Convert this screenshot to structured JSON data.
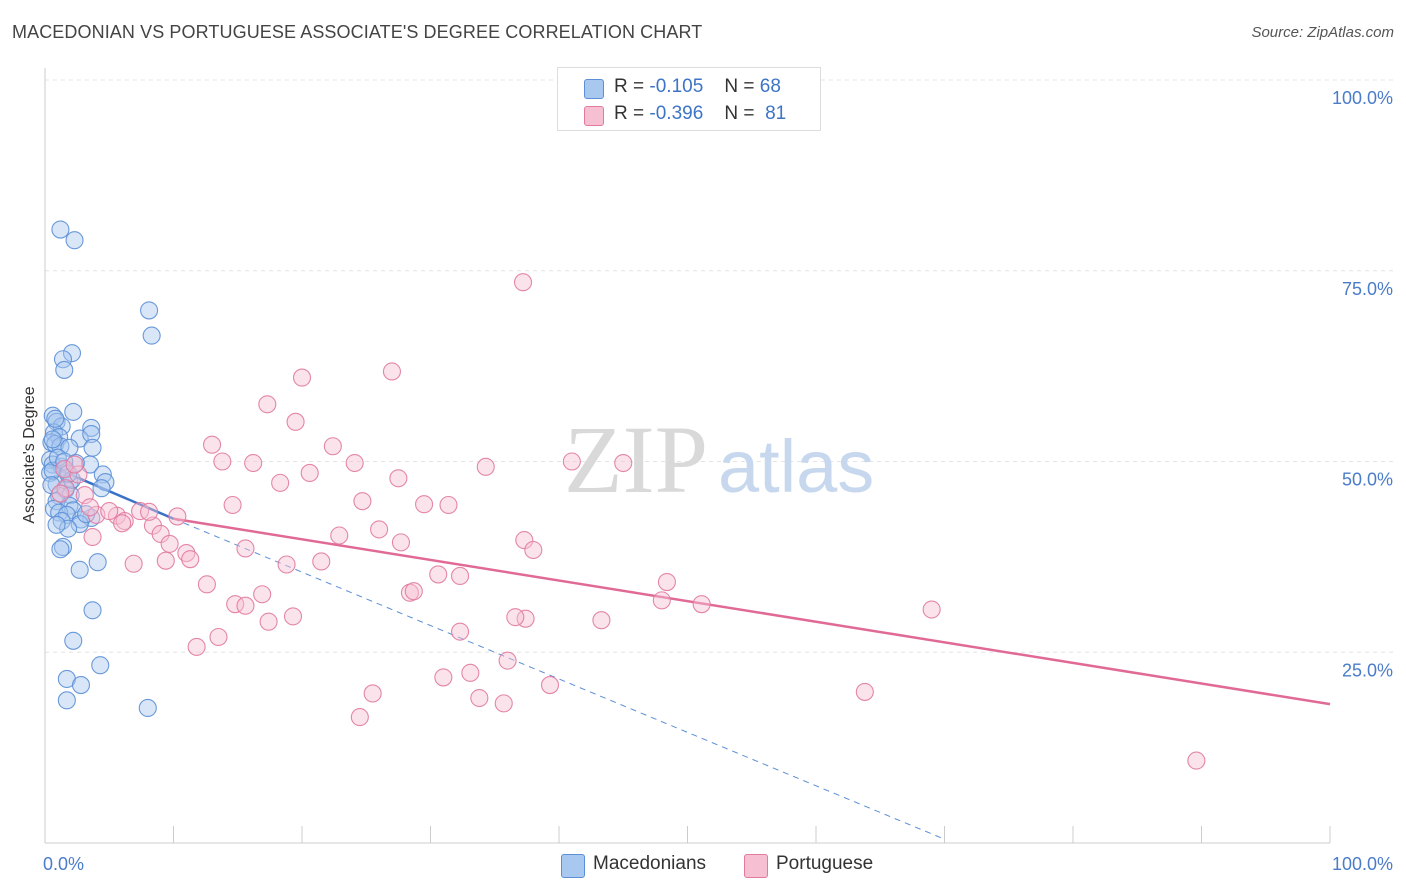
{
  "title": "MACEDONIAN VS PORTUGUESE ASSOCIATE'S DEGREE CORRELATION CHART",
  "source": "Source: ZipAtlas.com",
  "watermark": {
    "zip": "ZIP",
    "atlas": "atlas"
  },
  "legend": {
    "rows": [
      {
        "r_label": "R =",
        "r_value": "-0.105",
        "n_label": "N =",
        "n_value": "68",
        "color": "#a9c8f0",
        "border": "#5b8fd6"
      },
      {
        "r_label": "R =",
        "r_value": "-0.396",
        "n_label": "N =",
        "n_value": "81",
        "color": "#f7c0d2",
        "border": "#e07aa0"
      }
    ]
  },
  "bottom_legend": [
    {
      "label": "Macedonians",
      "color": "#a9c8f0",
      "border": "#5b8fd6"
    },
    {
      "label": "Portuguese",
      "color": "#f7c0d2",
      "border": "#e07aa0"
    }
  ],
  "chart_data": {
    "type": "scatter",
    "ylabel": "Associate's Degree",
    "xlim": [
      0,
      100
    ],
    "ylim": [
      0,
      100
    ],
    "x_tick_labels": [
      "0.0%",
      "100.0%"
    ],
    "y_ticks": [
      {
        "value": 100,
        "label": "100.0%"
      },
      {
        "value": 75,
        "label": "75.0%"
      },
      {
        "value": 50,
        "label": "50.0%"
      },
      {
        "value": 25,
        "label": "25.0%"
      }
    ],
    "grid": "horizontal dashed",
    "series": [
      {
        "name": "Macedonians",
        "color": "#5b8fd6",
        "fill": "#a9c8f0",
        "trend": {
          "x": [
            0.3,
            10
          ],
          "y": [
            49.5,
            42.5
          ],
          "color": "#3a72c8"
        },
        "trend_extended": {
          "x": [
            10,
            70
          ],
          "y": [
            42.5,
            0.5
          ]
        },
        "points": [
          [
            1.2,
            80.4
          ],
          [
            2.3,
            79.0
          ],
          [
            8.1,
            69.8
          ],
          [
            8.3,
            66.5
          ],
          [
            2.1,
            64.2
          ],
          [
            1.4,
            63.4
          ],
          [
            1.5,
            62.0
          ],
          [
            0.6,
            56.0
          ],
          [
            2.2,
            56.5
          ],
          [
            0.9,
            55.2
          ],
          [
            1.3,
            54.6
          ],
          [
            3.6,
            54.4
          ],
          [
            0.7,
            53.8
          ],
          [
            1.1,
            53.2
          ],
          [
            2.7,
            53.0
          ],
          [
            3.6,
            53.6
          ],
          [
            0.5,
            52.5
          ],
          [
            0.8,
            52.3
          ],
          [
            1.2,
            52.0
          ],
          [
            1.9,
            51.8
          ],
          [
            3.7,
            51.8
          ],
          [
            0.4,
            50.2
          ],
          [
            0.6,
            49.6
          ],
          [
            1.3,
            49.3
          ],
          [
            1.6,
            49.0
          ],
          [
            3.5,
            49.6
          ],
          [
            0.4,
            48.5
          ],
          [
            4.5,
            48.3
          ],
          [
            1.9,
            47.2
          ],
          [
            4.7,
            47.3
          ],
          [
            0.9,
            47.0
          ],
          [
            1.6,
            46.3
          ],
          [
            4.4,
            46.5
          ],
          [
            1.1,
            45.5
          ],
          [
            2.0,
            45.6
          ],
          [
            0.9,
            44.8
          ],
          [
            1.9,
            44.2
          ],
          [
            0.7,
            43.8
          ],
          [
            2.2,
            43.6
          ],
          [
            1.1,
            43.3
          ],
          [
            1.7,
            43.0
          ],
          [
            3.6,
            42.6
          ],
          [
            2.8,
            42.4
          ],
          [
            1.3,
            42.2
          ],
          [
            2.7,
            41.8
          ],
          [
            1.8,
            41.2
          ],
          [
            1.4,
            38.8
          ],
          [
            1.2,
            38.5
          ],
          [
            4.1,
            36.8
          ],
          [
            2.7,
            35.8
          ],
          [
            3.7,
            30.5
          ],
          [
            2.2,
            26.5
          ],
          [
            4.3,
            23.3
          ],
          [
            1.7,
            21.5
          ],
          [
            2.8,
            20.7
          ],
          [
            1.7,
            18.7
          ],
          [
            8.0,
            17.7
          ],
          [
            0.6,
            48.8
          ],
          [
            1.0,
            50.5
          ],
          [
            2.4,
            49.8
          ],
          [
            0.8,
            55.6
          ],
          [
            3.2,
            43.1
          ],
          [
            0.5,
            46.9
          ],
          [
            1.5,
            50.0
          ],
          [
            2.1,
            47.6
          ],
          [
            0.6,
            52.9
          ],
          [
            1.8,
            48.4
          ],
          [
            0.9,
            41.7
          ]
        ]
      },
      {
        "name": "Portuguese",
        "color": "#e07aa0",
        "fill": "#f7c0d2",
        "trend": {
          "x": [
            10,
            100
          ],
          "y": [
            42.5,
            18.2
          ],
          "color": "#e06a95"
        },
        "points": [
          [
            37.2,
            73.5
          ],
          [
            20.0,
            61.0
          ],
          [
            27.0,
            61.8
          ],
          [
            17.3,
            57.5
          ],
          [
            19.5,
            55.2
          ],
          [
            13.0,
            52.2
          ],
          [
            22.4,
            52.0
          ],
          [
            13.8,
            50.0
          ],
          [
            16.2,
            49.8
          ],
          [
            24.1,
            49.8
          ],
          [
            34.3,
            49.3
          ],
          [
            41.0,
            50.0
          ],
          [
            45.0,
            49.8
          ],
          [
            20.6,
            48.5
          ],
          [
            18.3,
            47.2
          ],
          [
            27.5,
            47.8
          ],
          [
            1.5,
            49.0
          ],
          [
            2.6,
            48.3
          ],
          [
            1.6,
            46.5
          ],
          [
            3.1,
            45.6
          ],
          [
            14.6,
            44.3
          ],
          [
            24.7,
            44.8
          ],
          [
            29.5,
            44.4
          ],
          [
            31.4,
            44.3
          ],
          [
            7.4,
            43.5
          ],
          [
            10.3,
            42.8
          ],
          [
            4.0,
            43.0
          ],
          [
            5.6,
            42.9
          ],
          [
            6.2,
            42.2
          ],
          [
            6.0,
            41.9
          ],
          [
            3.7,
            40.1
          ],
          [
            8.4,
            41.6
          ],
          [
            26.0,
            41.1
          ],
          [
            22.9,
            40.3
          ],
          [
            9.0,
            40.5
          ],
          [
            9.7,
            39.2
          ],
          [
            27.7,
            39.4
          ],
          [
            37.3,
            39.7
          ],
          [
            38.0,
            38.4
          ],
          [
            11.0,
            38.0
          ],
          [
            15.6,
            38.6
          ],
          [
            18.8,
            36.5
          ],
          [
            21.5,
            36.9
          ],
          [
            11.3,
            37.2
          ],
          [
            9.4,
            37.0
          ],
          [
            6.9,
            36.6
          ],
          [
            30.6,
            35.2
          ],
          [
            32.3,
            35.0
          ],
          [
            48.4,
            34.2
          ],
          [
            12.6,
            33.9
          ],
          [
            28.4,
            32.8
          ],
          [
            28.7,
            33.0
          ],
          [
            16.9,
            32.6
          ],
          [
            14.8,
            31.3
          ],
          [
            15.6,
            31.1
          ],
          [
            48.0,
            31.8
          ],
          [
            51.1,
            31.3
          ],
          [
            69.0,
            30.6
          ],
          [
            19.3,
            29.7
          ],
          [
            17.4,
            29.0
          ],
          [
            37.4,
            29.4
          ],
          [
            36.6,
            29.6
          ],
          [
            43.3,
            29.2
          ],
          [
            32.3,
            27.7
          ],
          [
            13.5,
            27.0
          ],
          [
            11.8,
            25.7
          ],
          [
            36.0,
            23.9
          ],
          [
            31.0,
            21.7
          ],
          [
            33.1,
            22.3
          ],
          [
            39.3,
            20.7
          ],
          [
            25.5,
            19.6
          ],
          [
            33.8,
            19.0
          ],
          [
            35.7,
            18.3
          ],
          [
            63.8,
            19.8
          ],
          [
            24.5,
            16.5
          ],
          [
            89.6,
            10.8
          ],
          [
            5.0,
            43.5
          ],
          [
            8.1,
            43.4
          ],
          [
            2.3,
            49.6
          ],
          [
            1.2,
            45.8
          ],
          [
            3.5,
            44.0
          ]
        ]
      }
    ]
  }
}
